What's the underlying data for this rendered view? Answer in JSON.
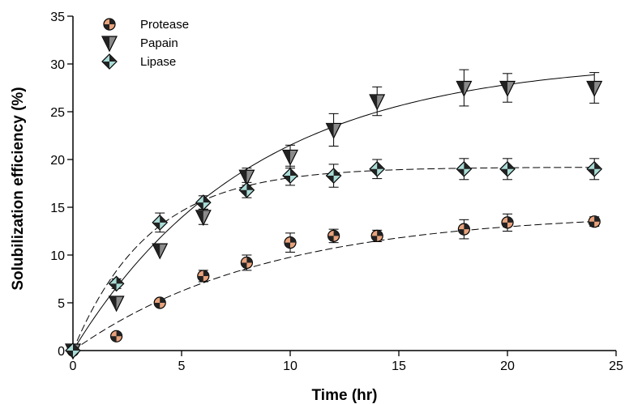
{
  "chart_data": {
    "type": "scatter",
    "xlabel": "Time (hr)",
    "ylabel": "Solubilization efficiency (%)",
    "xlim": [
      0,
      25
    ],
    "ylim": [
      0,
      35
    ],
    "xticks": [
      0,
      5,
      10,
      15,
      20,
      25
    ],
    "yticks": [
      0,
      5,
      10,
      15,
      20,
      25,
      30,
      35
    ],
    "grid": false,
    "legend_position": "top-left",
    "series": [
      {
        "name": "Protease",
        "marker": "circle",
        "color": "#e8a27c",
        "fit_line": "dashed",
        "x": [
          0,
          2,
          4,
          6,
          8,
          10,
          12,
          14,
          18,
          20,
          24
        ],
        "y": [
          0,
          1.5,
          5.0,
          7.8,
          9.2,
          11.3,
          12.0,
          12.0,
          12.7,
          13.4,
          13.5
        ],
        "err": [
          0,
          0,
          0,
          0.6,
          0.8,
          1.0,
          0.7,
          0.6,
          1.0,
          0.9,
          0.5
        ],
        "fit": {
          "a": 14.5,
          "k": 0.112
        }
      },
      {
        "name": "Papain",
        "marker": "triangle-down",
        "color": "#8a8a8a",
        "fit_line": "solid",
        "x": [
          0,
          2,
          4,
          6,
          8,
          10,
          12,
          14,
          18,
          20,
          24
        ],
        "y": [
          0,
          5.0,
          10.5,
          14.0,
          18.2,
          20.3,
          23.1,
          26.1,
          27.5,
          27.5,
          27.5
        ],
        "err": [
          0,
          0,
          0,
          0.8,
          0.9,
          1.2,
          1.7,
          1.5,
          1.9,
          1.5,
          1.6
        ],
        "fit": {
          "a": 30.5,
          "k": 0.122
        }
      },
      {
        "name": "Lipase",
        "marker": "diamond",
        "color": "#a9dcd6",
        "fit_line": "dashed",
        "x": [
          0,
          2,
          4,
          6,
          8,
          10,
          12,
          14,
          18,
          20,
          24
        ],
        "y": [
          0,
          7.0,
          13.4,
          15.5,
          16.8,
          18.3,
          18.3,
          19.0,
          19.0,
          19.0,
          19.0
        ],
        "err": [
          0,
          0.5,
          1.0,
          0.7,
          0.8,
          1.0,
          1.2,
          1.0,
          1.1,
          1.1,
          1.1
        ],
        "fit": {
          "a": 19.2,
          "k": 0.285
        }
      }
    ]
  }
}
